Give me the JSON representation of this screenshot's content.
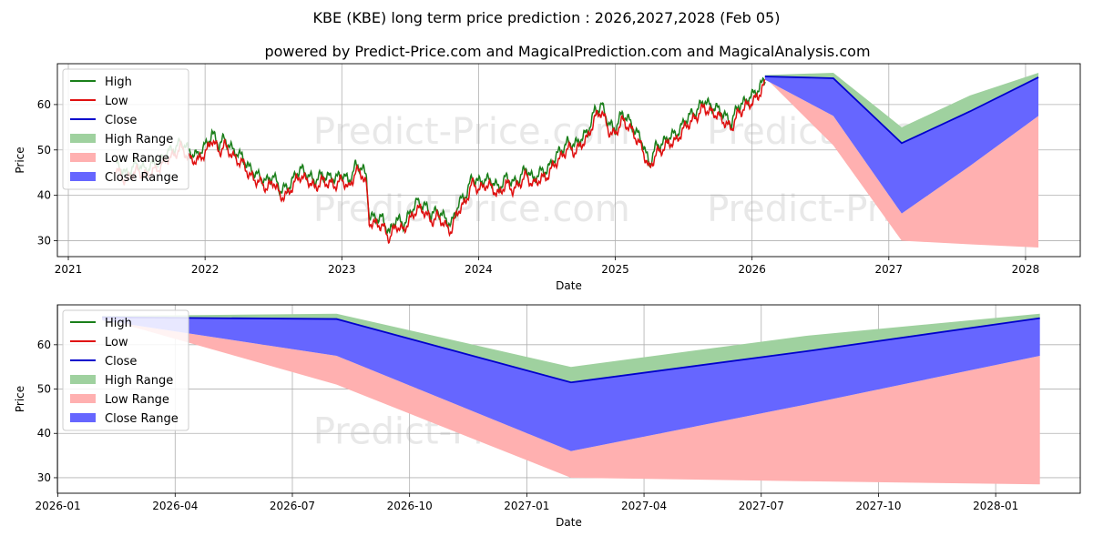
{
  "title": "KBE (KBE) long term price prediction : 2026,2027,2028 (Feb 05)",
  "subtitle": "powered by Predict-Price.com and MagicalPrediction.com and MagicalAnalysis.com",
  "watermark": "Predict-Price.com",
  "colors": {
    "high": "#1a7f1a",
    "low": "#e01010",
    "close": "#0000cc",
    "high_range": "#9fd19f",
    "low_range": "#ffb0b0",
    "close_range": "#6666ff",
    "grid": "#b0b0b0",
    "watermark": "#e8e8e8"
  },
  "legend": [
    {
      "key": "high",
      "label": "High",
      "kind": "line"
    },
    {
      "key": "low",
      "label": "Low",
      "kind": "line"
    },
    {
      "key": "close",
      "label": "Close",
      "kind": "line"
    },
    {
      "key": "high_range",
      "label": "High Range",
      "kind": "patch"
    },
    {
      "key": "low_range",
      "label": "Low Range",
      "kind": "patch"
    },
    {
      "key": "close_range",
      "label": "Close Range",
      "kind": "patch"
    }
  ],
  "chart_data": [
    {
      "type": "line",
      "name": "history-and-forecast",
      "xlabel": "Date",
      "ylabel": "Price",
      "xlim": [
        2020.92,
        2028.4
      ],
      "ylim": [
        26.5,
        69
      ],
      "xticks": [
        2021,
        2022,
        2023,
        2024,
        2025,
        2026,
        2027,
        2028
      ],
      "xticklabels": [
        "2021",
        "2022",
        "2023",
        "2024",
        "2025",
        "2026",
        "2027",
        "2028"
      ],
      "yticks": [
        30,
        40,
        50,
        60
      ],
      "yticklabels": [
        "30",
        "40",
        "50",
        "60"
      ],
      "legend_position": "upper-left",
      "history_close": [
        [
          2021.35,
          46
        ],
        [
          2021.42,
          44
        ],
        [
          2021.5,
          46
        ],
        [
          2021.58,
          45
        ],
        [
          2021.67,
          47
        ],
        [
          2021.75,
          49
        ],
        [
          2021.82,
          51
        ],
        [
          2021.88,
          49
        ],
        [
          2021.95,
          48
        ],
        [
          2022.02,
          51
        ],
        [
          2022.05,
          53
        ],
        [
          2022.1,
          50
        ],
        [
          2022.14,
          52
        ],
        [
          2022.2,
          49
        ],
        [
          2022.27,
          48
        ],
        [
          2022.32,
          45
        ],
        [
          2022.38,
          44
        ],
        [
          2022.45,
          42
        ],
        [
          2022.5,
          44
        ],
        [
          2022.55,
          40
        ],
        [
          2022.6,
          41
        ],
        [
          2022.65,
          43
        ],
        [
          2022.7,
          45
        ],
        [
          2022.75,
          44
        ],
        [
          2022.8,
          42
        ],
        [
          2022.85,
          44
        ],
        [
          2022.9,
          43
        ],
        [
          2022.95,
          43
        ],
        [
          2023.0,
          44
        ],
        [
          2023.05,
          42
        ],
        [
          2023.1,
          46
        ],
        [
          2023.15,
          45
        ],
        [
          2023.18,
          43
        ],
        [
          2023.2,
          35
        ],
        [
          2023.25,
          34
        ],
        [
          2023.3,
          34
        ],
        [
          2023.35,
          31
        ],
        [
          2023.4,
          34
        ],
        [
          2023.45,
          33
        ],
        [
          2023.5,
          35
        ],
        [
          2023.55,
          38
        ],
        [
          2023.6,
          37
        ],
        [
          2023.65,
          35
        ],
        [
          2023.7,
          36
        ],
        [
          2023.75,
          34
        ],
        [
          2023.8,
          33
        ],
        [
          2023.85,
          37
        ],
        [
          2023.9,
          39
        ],
        [
          2023.95,
          43
        ],
        [
          2024.0,
          42
        ],
        [
          2024.05,
          43
        ],
        [
          2024.1,
          42
        ],
        [
          2024.15,
          41
        ],
        [
          2024.2,
          43
        ],
        [
          2024.25,
          42
        ],
        [
          2024.3,
          43
        ],
        [
          2024.35,
          45
        ],
        [
          2024.4,
          43
        ],
        [
          2024.45,
          44
        ],
        [
          2024.5,
          45
        ],
        [
          2024.55,
          47
        ],
        [
          2024.6,
          49
        ],
        [
          2024.65,
          51
        ],
        [
          2024.7,
          50
        ],
        [
          2024.75,
          52
        ],
        [
          2024.8,
          53
        ],
        [
          2024.85,
          58
        ],
        [
          2024.9,
          59
        ],
        [
          2024.95,
          55
        ],
        [
          2025.0,
          54
        ],
        [
          2025.05,
          57
        ],
        [
          2025.1,
          56
        ],
        [
          2025.15,
          53
        ],
        [
          2025.2,
          51
        ],
        [
          2025.25,
          46
        ],
        [
          2025.3,
          50
        ],
        [
          2025.35,
          51
        ],
        [
          2025.4,
          52
        ],
        [
          2025.45,
          53
        ],
        [
          2025.5,
          55
        ],
        [
          2025.55,
          57
        ],
        [
          2025.6,
          58
        ],
        [
          2025.65,
          60
        ],
        [
          2025.7,
          59
        ],
        [
          2025.75,
          58
        ],
        [
          2025.8,
          57
        ],
        [
          2025.85,
          55
        ],
        [
          2025.9,
          59
        ],
        [
          2025.95,
          60
        ],
        [
          2026.0,
          61
        ],
        [
          2026.05,
          63
        ],
        [
          2026.1,
          65
        ]
      ],
      "history_note": "history approximated from plotted line; high and low series track close within roughly 1-2 units"
    },
    {
      "type": "area",
      "name": "forecast-zoom",
      "xlabel": "Date",
      "ylabel": "Price",
      "xlim": [
        "2025-12-31",
        "2028-03-06"
      ],
      "ylim": [
        26.5,
        69
      ],
      "xticks": [
        "2026-01",
        "2026-04",
        "2026-07",
        "2026-10",
        "2027-01",
        "2027-04",
        "2027-07",
        "2027-10",
        "2028-01"
      ],
      "xticklabels": [
        "2026-01",
        "2026-04",
        "2026-07",
        "2026-10",
        "2027-01",
        "2027-04",
        "2027-07",
        "2027-10",
        "2028-01"
      ],
      "yticks": [
        30,
        40,
        50,
        60
      ],
      "yticklabels": [
        "30",
        "40",
        "50",
        "60"
      ],
      "legend_position": "upper-left",
      "forecast_dates": [
        "2026-02-05",
        "2026-08-05",
        "2027-02-05",
        "2027-08-05",
        "2028-02-05"
      ],
      "series": [
        {
          "name": "High Range upper",
          "values": [
            66.5,
            67,
            55,
            62,
            67
          ]
        },
        {
          "name": "Close",
          "values": [
            66.2,
            65.8,
            51.5,
            58.5,
            66
          ]
        },
        {
          "name": "Close Range lower",
          "values": [
            65.5,
            57.5,
            36,
            46.5,
            57.5
          ]
        },
        {
          "name": "Low Range upper",
          "values": [
            65.5,
            57.5,
            36,
            46.5,
            57.5
          ]
        },
        {
          "name": "Low Range lower",
          "values": [
            66,
            51,
            30,
            29.2,
            28.5
          ]
        }
      ]
    }
  ]
}
